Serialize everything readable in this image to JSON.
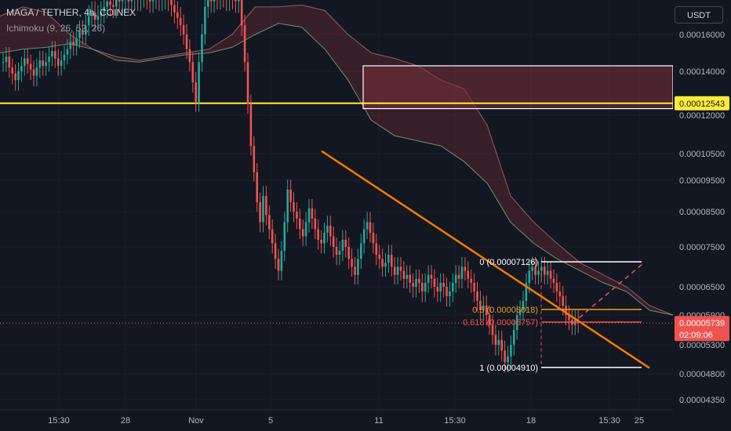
{
  "header": {
    "symbol": "MAGA / TETHER, 4h, COINEX",
    "indicator": "Ichimoku (9, 26, 52, 26)",
    "currency": "USDT"
  },
  "colors": {
    "background": "#131722",
    "bull": "#26a69a",
    "bear": "#ef5350",
    "trendline": "#f57c00",
    "horizontal": "#ffeb3b",
    "cloud_bear": "#7a2f3a",
    "price_tag": "#ef5350",
    "hline_tag": "#ffeb3b"
  },
  "chart_data": {
    "type": "candlestick",
    "y_ticks": [
      "0.00016000",
      "0.00014000",
      "0.00012000",
      "0.00010500",
      "0.00009500",
      "0.00008500",
      "0.00007500",
      "0.00006500",
      "0.00005900",
      "0.00005300",
      "0.00004800",
      "0.00004350"
    ],
    "x_ticks": [
      "15:30",
      "28",
      "Nov",
      "5",
      "11",
      "15:30",
      "18",
      "15:30",
      "25"
    ],
    "horizontal_line": {
      "value": 0.00012543,
      "label": "0.00012543"
    },
    "current_price": {
      "value": 5.739e-05,
      "label": "0.00005739",
      "countdown": "02:09:06"
    },
    "fib_levels": [
      {
        "ratio": "0",
        "value": 7.126e-05,
        "label": "0 (0.00007126)"
      },
      {
        "ratio": "0.5",
        "value": 6.018e-05,
        "label": "0.5 (0.00006018)"
      },
      {
        "ratio": "0.618",
        "value": 5.757e-05,
        "label": "0.618 (0.00005757)"
      },
      {
        "ratio": "1",
        "value": 4.91e-05,
        "label": "1 (0.00004910)"
      }
    ],
    "zone": {
      "top": 0.000143,
      "bottom": 0.000123
    },
    "trendline": {
      "from": 0.000106,
      "to": 4.9e-05
    },
    "ichimoku_cloud": {
      "upper": [
        0.00017,
        0.000175,
        0.000172,
        0.00016,
        0.000152,
        0.000148,
        0.000146,
        0.000148,
        0.00015,
        0.000152,
        0.00016,
        0.000175,
        0.000175,
        0.000176,
        0.000173,
        0.00016,
        0.00015,
        0.000147,
        0.000143,
        0.000136,
        0.000132,
        0.000116,
        9e-05,
        8.2e-05,
        7.6e-05,
        7.1e-05,
        6.8e-05,
        6.5e-05,
        6.1e-05,
        5.9e-05
      ],
      "lower": [
        0.00015,
        0.000152,
        0.000153,
        0.000155,
        0.000152,
        0.000146,
        0.000145,
        0.000147,
        0.000149,
        0.00015,
        0.000153,
        0.00016,
        0.000166,
        0.000164,
        0.000152,
        0.000136,
        0.000118,
        0.000112,
        0.00011,
        0.000108,
        0.000102,
        9.4e-05,
        8.2e-05,
        7.6e-05,
        7.2e-05,
        6.9e-05,
        6.6e-05,
        6.4e-05,
        6e-05,
        5.9e-05
      ]
    },
    "candles_close": [
      0.000145,
      0.000148,
      0.000142,
      0.000139,
      0.000136,
      0.00014,
      0.000143,
      0.000147,
      0.000144,
      0.000141,
      0.000138,
      0.000142,
      0.000146,
      0.000143,
      0.000145,
      0.000148,
      0.000151,
      0.000147,
      0.000143,
      0.000146,
      0.000149,
      0.000152,
      0.000156,
      0.000154,
      0.000158,
      0.000162,
      0.00016,
      0.000165,
      0.00017,
      0.000172,
      0.000168,
      0.00017,
      0.000172,
      0.000175,
      0.000178,
      0.000176,
      0.000175,
      0.00018,
      0.000178,
      0.000179,
      0.000181,
      0.000178,
      0.00018,
      0.000182,
      0.000179,
      0.000181,
      0.000183,
      0.00018,
      0.000178,
      0.00018,
      0.000181,
      0.000179,
      0.00018,
      0.000182,
      0.000179,
      0.000176,
      0.000172,
      0.000169,
      0.000165,
      0.00016,
      0.000152,
      0.000145,
      0.000135,
      0.000126,
      0.000145,
      0.00016,
      0.000175,
      0.00018,
      0.000178,
      0.000182,
      0.00018,
      0.000183,
      0.000181,
      0.000179,
      0.000182,
      0.00018,
      0.000178,
      0.000181,
      0.000165,
      0.000145,
      0.000125,
      0.000108,
      9.8e-05,
      8.8e-05,
      8.2e-05,
      9e-05,
      8.4e-05,
      8e-05,
      7.6e-05,
      7.2e-05,
      6.9e-05,
      7.4e-05,
      8.2e-05,
      9.2e-05,
      8.8e-05,
      8.5e-05,
      8.3e-05,
      8e-05,
      7.8e-05,
      8.2e-05,
      8.6e-05,
      8.3e-05,
      8e-05,
      7.7e-05,
      7.6e-05,
      7.9e-05,
      8.1e-05,
      7.8e-05,
      7.5e-05,
      7.3e-05,
      7.4e-05,
      7.7e-05,
      7.5e-05,
      7.2e-05,
      7e-05,
      6.8e-05,
      7.2e-05,
      7.6e-05,
      8e-05,
      8.2e-05,
      7.9e-05,
      7.6e-05,
      7.3e-05,
      7.2e-05,
      7e-05,
      7.1e-05,
      7.3e-05,
      7e-05,
      6.8e-05,
      7e-05,
      6.9e-05,
      6.7e-05,
      6.8e-05,
      6.6e-05,
      6.5e-05,
      6.7e-05,
      6.6e-05,
      6.4e-05,
      6.6e-05,
      6.8e-05,
      6.7e-05,
      6.5e-05,
      6.4e-05,
      6.6e-05,
      6.5e-05,
      6.3e-05,
      6.4e-05,
      6.6e-05,
      6.8e-05,
      6.7e-05,
      7e-05,
      6.9e-05,
      6.7e-05,
      6.6e-05,
      6.4e-05,
      6.2e-05,
      6e-05,
      6.1e-05,
      5.9e-05,
      5.7e-05,
      5.5e-05,
      5.3e-05,
      5.4e-05,
      5.2e-05,
      5e-05,
      5.1e-05,
      5.3e-05,
      5.6e-05,
      5.9e-05,
      6e-05,
      6.2e-05,
      6.6e-05,
      6.9e-05,
      7e-05,
      6.8e-05,
      6.9e-05,
      7e-05,
      6.8e-05,
      6.9e-05,
      6.7e-05,
      6.6e-05,
      6.4e-05,
      6.3e-05,
      6.1e-05,
      5.9e-05,
      5.8e-05,
      5.7e-05,
      5.8e-05,
      5.74e-05
    ]
  }
}
